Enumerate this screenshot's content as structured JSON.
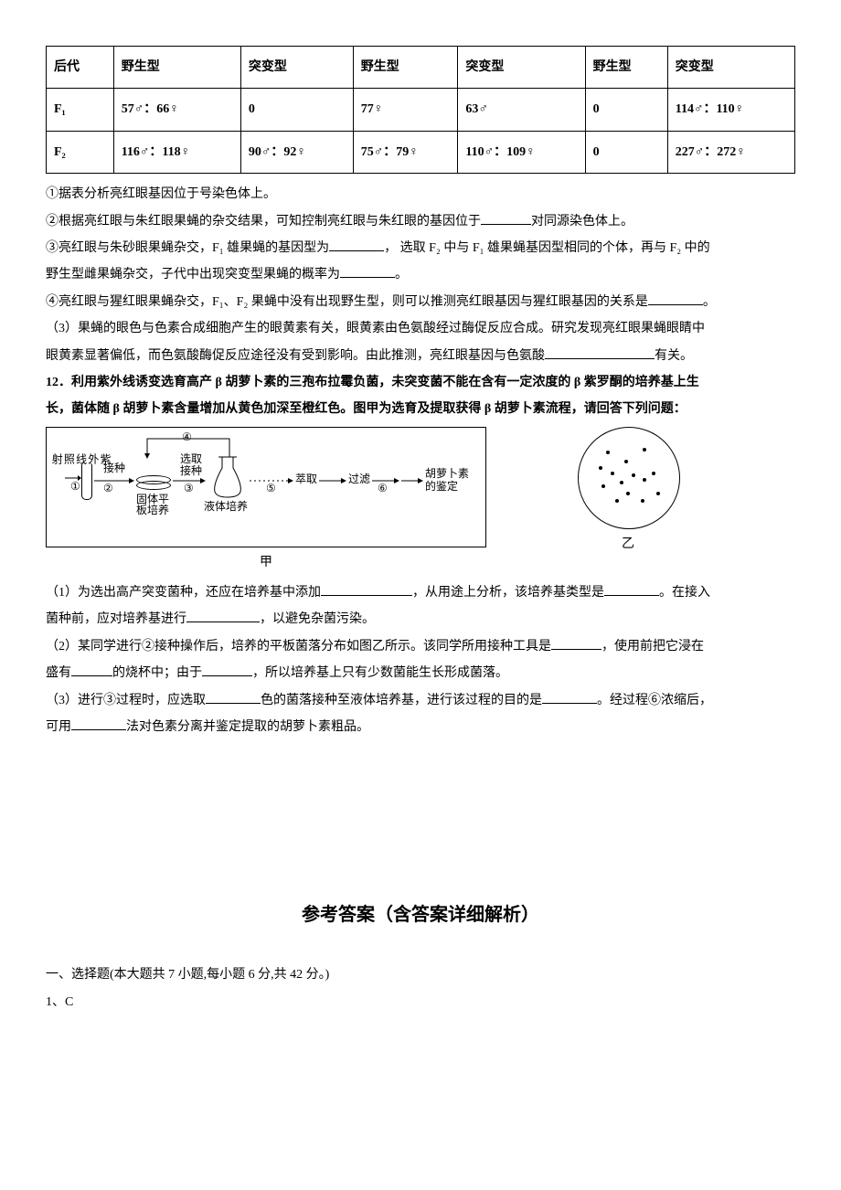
{
  "table": {
    "headers": [
      "后代",
      "野生型",
      "突变型",
      "野生型",
      "突变型",
      "野生型",
      "突变型"
    ],
    "rows": [
      [
        "F₁",
        "57♂：66♀",
        "0",
        "77♀",
        "63♂",
        "0",
        "114♂：110♀"
      ],
      [
        "F₂",
        "116♂：118♀",
        "90♂：92♀",
        "75♂：79♀",
        "110♂：109♀",
        "0",
        "227♂：272♀"
      ]
    ],
    "col_widths": [
      "9%",
      "17%",
      "15%",
      "14%",
      "17%",
      "11%",
      "17%"
    ]
  },
  "lines": {
    "l1_a": "①据表分析亮红眼基因位于",
    "l1_b": "号染色体上。",
    "l2_a": "②根据亮红眼与朱红眼果蝇的杂交结果，可知控制亮红眼与朱红眼的基因位于",
    "l2_b": "对同源染色体上。",
    "l3_a": "③亮红眼与朱砂眼果蝇杂交，F₁ 雄果蝇的基因型为",
    "l3_b": "， 选取 F₂ 中与 F₁ 雄果蝇基因型相同的个体，再与 F₂ 中的",
    "l3_c": "野生型雌果蝇杂交，子代中出现突变型果蝇的概率为",
    "l3_d": "。",
    "l4_a": "④亮红眼与猩红眼果蝇杂交，F₁、F₂ 果蝇中没有出现野生型，则可以推测亮红眼基因与猩红眼基因的关系是",
    "l4_b": "。",
    "l5_a": "（3）果蝇的眼色与色素合成细胞产生的眼黄素有关，眼黄素由色氨酸经过酶促反应合成。研究发现亮红眼果蝇眼睛中",
    "l5_b": "眼黄素显著偏低，而色氨酸酶促反应途径没有受到影响。由此推测，亮红眼基因与色氨酸",
    "l5_c": "有关。",
    "q12_a": "12．利用紫外线诱变选育高产 β 胡萝卜素的三孢布拉霉负菌，未突变菌不能在含有一定浓度的 β 紫罗酮的培养基上生",
    "q12_b": "长，菌体随 β 胡萝卜素含量增加从黄色加深至橙红色。图甲为选育及提取获得 β 胡萝卜素流程，请回答下列问题：",
    "p1_a": "（1）为选出高产突变菌种，还应在培养基中添加",
    "p1_b": "，从用途上分析，该培养基类型是",
    "p1_c": "。在接入",
    "p1_d": "菌种前，应对培养基进行",
    "p1_e": "，以避免杂菌污染。",
    "p2_a": "（2）某同学进行②接种操作后，培养的平板菌落分布如图乙所示。该同学所用接种工具是",
    "p2_b": "，使用前把它浸在",
    "p2_c": "盛有",
    "p2_d": "的烧杯中；由于",
    "p2_e": "，所以培养基上只有少数菌能生长形成菌落。",
    "p3_a": "（3）进行③过程时，应选取",
    "p3_b": "色的菌落接种至液体培养基，进行该过程的目的是",
    "p3_c": "。经过程⑥浓缩后，",
    "p3_d": "可用",
    "p3_e": "法对色素分离并鉴定提取的胡萝卜素粗品。"
  },
  "flow": {
    "left_lbl": "紫\n外\n线\n照\n射",
    "n1": "①",
    "n2": "②",
    "n3": "③",
    "n4": "④",
    "n5": "⑤",
    "n6": "⑥",
    "jz": "接种",
    "gtpb": "固体平",
    "bpy": "板培养",
    "xqjz": "选取\n接种",
    "ytpy": "液体培养",
    "cq": "萃取",
    "gl": "过滤",
    "hls": "胡萝卜素",
    "jd": "的鉴定",
    "cap_a": "甲",
    "cap_b": "乙"
  },
  "answer": {
    "title": "参考答案（含答案详细解析）",
    "section": "一、选择题(本大题共 7 小题,每小题 6 分,共 42 分。)",
    "a1": "1、C"
  },
  "blank_widths": {
    "w60": "60px",
    "w70": "70px",
    "w55": "55px",
    "w80": "80px",
    "w100": "100px",
    "w120": "120px",
    "w45": "45px"
  }
}
